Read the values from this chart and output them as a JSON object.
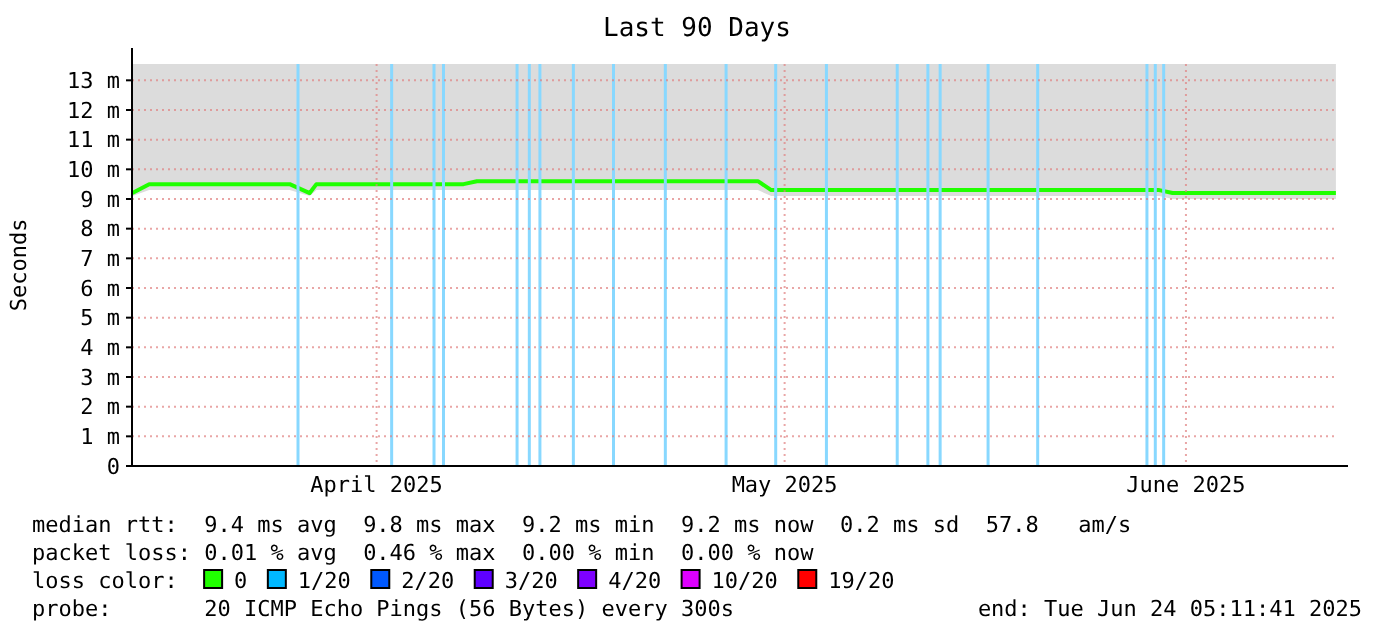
{
  "chart_data": {
    "type": "line",
    "title": "Last 90 Days",
    "ylabel": "Seconds",
    "xlim": [
      "2025-03-26T05:11",
      "2025-06-24T05:11"
    ],
    "xticks": [
      {
        "value": "2025-04-13T12:00",
        "label": "April 2025"
      },
      {
        "value": "2025-05-14T00:00",
        "label": "May 2025"
      },
      {
        "value": "2025-06-13T00:00",
        "label": "June 2025"
      }
    ],
    "ylim": [
      0,
      13.55
    ],
    "yticks": [
      {
        "value": 0,
        "label": "0"
      },
      {
        "value": 1,
        "label": "1 m"
      },
      {
        "value": 2,
        "label": "2 m"
      },
      {
        "value": 3,
        "label": "3 m"
      },
      {
        "value": 4,
        "label": "4 m"
      },
      {
        "value": 5,
        "label": "5 m"
      },
      {
        "value": 6,
        "label": "6 m"
      },
      {
        "value": 7,
        "label": "7 m"
      },
      {
        "value": 8,
        "label": "8 m"
      },
      {
        "value": 9,
        "label": "9 m"
      },
      {
        "value": 10,
        "label": "10 m"
      },
      {
        "value": 11,
        "label": "11 m"
      },
      {
        "value": 12,
        "label": "12 m"
      },
      {
        "value": 13,
        "label": "13 m"
      }
    ],
    "grid": true,
    "legend": "bottom",
    "legend_title": "loss color:",
    "marker": "none",
    "line_style": "solid",
    "x": [
      "2025-03-26T06:00",
      "2025-03-27T12:00",
      "2025-03-30",
      "2025-04-03",
      "2025-04-07",
      "2025-04-08T12:00",
      "2025-04-09",
      "2025-04-13",
      "2025-04-17",
      "2025-04-20",
      "2025-04-21",
      "2025-04-25",
      "2025-04-29",
      "2025-05-03",
      "2025-05-07",
      "2025-05-12",
      "2025-05-13",
      "2025-05-17",
      "2025-05-21",
      "2025-05-25",
      "2025-05-29",
      "2025-06-02",
      "2025-06-06",
      "2025-06-11",
      "2025-06-12",
      "2025-06-16",
      "2025-06-20",
      "2025-06-24T05:00"
    ],
    "series": [
      {
        "name": "0",
        "color": "#20ff00",
        "values": [
          9.2,
          9.5,
          9.5,
          9.5,
          9.5,
          9.2,
          9.5,
          9.5,
          9.5,
          9.5,
          9.6,
          9.6,
          9.6,
          9.6,
          9.6,
          9.6,
          9.3,
          9.3,
          9.3,
          9.3,
          9.3,
          9.3,
          9.3,
          9.3,
          9.2,
          9.2,
          9.2,
          9.2
        ],
        "lower": [
          9.1,
          9.3,
          9.3,
          9.3,
          9.3,
          9.1,
          9.3,
          9.3,
          9.3,
          9.3,
          9.3,
          9.3,
          9.3,
          9.3,
          9.3,
          9.3,
          9.1,
          9.1,
          9.1,
          9.1,
          9.1,
          9.1,
          9.1,
          9.1,
          9.0,
          9.0,
          9.0,
          9.0
        ],
        "upper": [
          13.55,
          13.55,
          13.55,
          13.55,
          13.55,
          13.55,
          13.55,
          13.55,
          13.55,
          13.55,
          13.55,
          13.55,
          13.55,
          13.55,
          13.55,
          13.55,
          13.55,
          13.55,
          13.55,
          13.55,
          13.55,
          13.55,
          13.55,
          13.55,
          13.55,
          13.55,
          13.55,
          13.55
        ]
      },
      {
        "name": "1/20",
        "color": "#00b8ff",
        "values": [
          null,
          null,
          null,
          null,
          null,
          null,
          null,
          null,
          null,
          null,
          null,
          null,
          null,
          null,
          null,
          null,
          null,
          null,
          null,
          null,
          null,
          null,
          null,
          null,
          null,
          null,
          null,
          null
        ]
      },
      {
        "name": "2/20",
        "color": "#0059ff",
        "values": [
          null,
          null,
          null,
          null,
          null,
          null,
          null,
          null,
          null,
          null,
          null,
          null,
          null,
          null,
          null,
          null,
          null,
          null,
          null,
          null,
          null,
          null,
          null,
          null,
          null,
          null,
          null,
          null
        ]
      },
      {
        "name": "3/20",
        "color": "#5e00ff",
        "values": [
          null,
          null,
          null,
          null,
          null,
          null,
          null,
          null,
          null,
          null,
          null,
          null,
          null,
          null,
          null,
          null,
          null,
          null,
          null,
          null,
          null,
          null,
          null,
          null,
          null,
          null,
          null,
          null
        ]
      },
      {
        "name": "4/20",
        "color": "#7e00ff",
        "values": [
          null,
          null,
          null,
          null,
          null,
          null,
          null,
          null,
          null,
          null,
          null,
          null,
          null,
          null,
          null,
          null,
          null,
          null,
          null,
          null,
          null,
          null,
          null,
          null,
          null,
          null,
          null,
          null
        ]
      },
      {
        "name": "10/20",
        "color": "#dd00ff",
        "values": [
          null,
          null,
          null,
          null,
          null,
          null,
          null,
          null,
          null,
          null,
          null,
          null,
          null,
          null,
          null,
          null,
          null,
          null,
          null,
          null,
          null,
          null,
          null,
          null,
          null,
          null,
          null,
          null
        ]
      },
      {
        "name": "19/20",
        "color": "#ff0000",
        "values": [
          null,
          null,
          null,
          null,
          null,
          null,
          null,
          null,
          null,
          null,
          null,
          null,
          null,
          null,
          null,
          null,
          null,
          null,
          null,
          null,
          null,
          null,
          null,
          null,
          null,
          null,
          null,
          null
        ]
      }
    ],
    "ref_lines": [
      {
        "axis": "x",
        "value": "2025-04-07T15:00",
        "color": "#88d8ff"
      },
      {
        "axis": "x",
        "value": "2025-04-14T15:00",
        "color": "#88d8ff"
      },
      {
        "axis": "x",
        "value": "2025-04-17T19:00",
        "color": "#88d8ff"
      },
      {
        "axis": "x",
        "value": "2025-04-18T12:00",
        "color": "#88d8ff"
      },
      {
        "axis": "x",
        "value": "2025-04-24T00:00",
        "color": "#88d8ff"
      },
      {
        "axis": "x",
        "value": "2025-04-24T22:00",
        "color": "#88d8ff"
      },
      {
        "axis": "x",
        "value": "2025-04-25T17:00",
        "color": "#88d8ff"
      },
      {
        "axis": "x",
        "value": "2025-04-28T05:00",
        "color": "#88d8ff"
      },
      {
        "axis": "x",
        "value": "2025-05-01T05:00",
        "color": "#88d8ff"
      },
      {
        "axis": "x",
        "value": "2025-05-05T02:00",
        "color": "#88d8ff"
      },
      {
        "axis": "x",
        "value": "2025-05-09T15:00",
        "color": "#88d8ff"
      },
      {
        "axis": "x",
        "value": "2025-05-13T08:00",
        "color": "#88d8ff"
      },
      {
        "axis": "x",
        "value": "2025-05-17T03:00",
        "color": "#88d8ff"
      },
      {
        "axis": "x",
        "value": "2025-05-22T10:00",
        "color": "#88d8ff"
      },
      {
        "axis": "x",
        "value": "2025-05-24T17:00",
        "color": "#88d8ff"
      },
      {
        "axis": "x",
        "value": "2025-05-25T15:00",
        "color": "#88d8ff"
      },
      {
        "axis": "x",
        "value": "2025-05-29T05:00",
        "color": "#88d8ff"
      },
      {
        "axis": "x",
        "value": "2025-06-01T22:00",
        "color": "#88d8ff"
      },
      {
        "axis": "x",
        "value": "2025-06-10T02:00",
        "color": "#88d8ff"
      },
      {
        "axis": "x",
        "value": "2025-06-10T17:00",
        "color": "#88d8ff"
      },
      {
        "axis": "x",
        "value": "2025-06-11T08:00",
        "color": "#88d8ff"
      }
    ],
    "annotations": [
      "median rtt:  9.4 ms avg  9.8 ms max  9.2 ms min  9.2 ms now  0.2 ms sd  57.8   am/s",
      "packet loss: 0.01 % avg  0.46 % max  0.00 % min  0.00 % now",
      "probe:       20 ICMP Echo Pings (56 Bytes) every 300s",
      "end: Tue Jun 24 05:11:41 2025"
    ]
  }
}
